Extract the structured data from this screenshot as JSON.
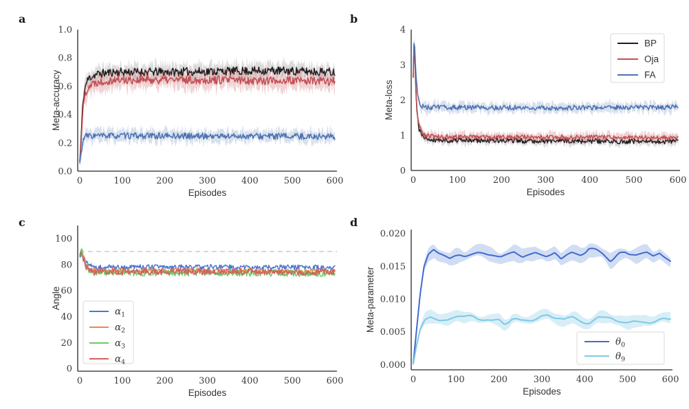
{
  "figure": {
    "background": "#ffffff"
  },
  "chart_data": [
    {
      "panel_label": "a",
      "type": "line",
      "xlabel": "Episodes",
      "ylabel": "Meta-accuracy",
      "xlim": [
        0,
        600
      ],
      "ylim": [
        0,
        1.0
      ],
      "xticks": [
        0,
        100,
        200,
        300,
        400,
        500,
        600
      ],
      "xtick_labels": [
        "0",
        "100",
        "200",
        "300",
        "400",
        "500",
        "600"
      ],
      "yticks": [
        0.0,
        0.2,
        0.4,
        0.6,
        0.8,
        1.0
      ],
      "ytick_labels": [
        "0.0",
        "0.2",
        "0.4",
        "0.6",
        "0.8",
        "1.0"
      ],
      "legend": null,
      "ref_lines": [],
      "series": [
        {
          "id": "bp",
          "name": "BP",
          "color": "#1b1b1b",
          "line_width": 1.5,
          "band_color": "#8a8a8a",
          "band_opacity": 0.3,
          "band": 0.07,
          "noise": 0.03,
          "smooth": 0,
          "seed": 11,
          "samples": 360,
          "keypoints": [
            [
              0,
              0.07
            ],
            [
              3,
              0.22
            ],
            [
              6,
              0.42
            ],
            [
              10,
              0.55
            ],
            [
              15,
              0.62
            ],
            [
              22,
              0.66
            ],
            [
              40,
              0.685
            ],
            [
              80,
              0.7
            ],
            [
              200,
              0.7
            ],
            [
              320,
              0.705
            ],
            [
              450,
              0.71
            ],
            [
              600,
              0.7
            ]
          ]
        },
        {
          "id": "oja",
          "name": "Oja",
          "color": "#c44e52",
          "line_width": 1.5,
          "band_color": "#c44e52",
          "band_opacity": 0.25,
          "band": 0.08,
          "noise": 0.03,
          "smooth": 0,
          "seed": 22,
          "samples": 360,
          "keypoints": [
            [
              0,
              0.07
            ],
            [
              3,
              0.2
            ],
            [
              6,
              0.38
            ],
            [
              10,
              0.5
            ],
            [
              15,
              0.565
            ],
            [
              22,
              0.605
            ],
            [
              40,
              0.63
            ],
            [
              80,
              0.645
            ],
            [
              300,
              0.645
            ],
            [
              600,
              0.635
            ]
          ]
        },
        {
          "id": "fa",
          "name": "FA",
          "color": "#4c72b0",
          "line_width": 1.5,
          "band_color": "#4c72b0",
          "band_opacity": 0.22,
          "band": 0.055,
          "noise": 0.022,
          "smooth": 0,
          "seed": 33,
          "samples": 360,
          "keypoints": [
            [
              0,
              0.055
            ],
            [
              3,
              0.12
            ],
            [
              6,
              0.19
            ],
            [
              10,
              0.235
            ],
            [
              16,
              0.25
            ],
            [
              40,
              0.25
            ],
            [
              300,
              0.248
            ],
            [
              600,
              0.245
            ]
          ]
        }
      ]
    },
    {
      "panel_label": "b",
      "type": "line",
      "xlabel": "Episodes",
      "ylabel": "Meta-loss",
      "xlim": [
        0,
        600
      ],
      "ylim": [
        0,
        4
      ],
      "xticks": [
        0,
        100,
        200,
        300,
        400,
        500,
        600
      ],
      "xtick_labels": [
        "0",
        "100",
        "200",
        "300",
        "400",
        "500",
        "600"
      ],
      "yticks": [
        0,
        1,
        2,
        3,
        4
      ],
      "ytick_labels": [
        "0",
        "1",
        "2",
        "3",
        "4"
      ],
      "legend": {
        "position": "top-right",
        "items": [
          {
            "id": "bp",
            "label": "BP",
            "sub": "",
            "italic": false,
            "color": "#1b1b1b"
          },
          {
            "id": "oja",
            "label": "Oja",
            "sub": "",
            "italic": false,
            "color": "#c44e52"
          },
          {
            "id": "fa",
            "label": "FA",
            "sub": "",
            "italic": false,
            "color": "#4c72b0"
          }
        ]
      },
      "ref_lines": [],
      "series": [
        {
          "id": "bp",
          "name": "BP",
          "color": "#1b1b1b",
          "line_width": 1.5,
          "band_color": "#8a8a8a",
          "band_opacity": 0.3,
          "band": 0.14,
          "noise": 0.07,
          "smooth": 0,
          "seed": 41,
          "samples": 360,
          "keypoints": [
            [
              0,
              2.6
            ],
            [
              2,
              3.75
            ],
            [
              4,
              3.05
            ],
            [
              6,
              2.15
            ],
            [
              9,
              1.55
            ],
            [
              13,
              1.18
            ],
            [
              20,
              1.0
            ],
            [
              30,
              0.9
            ],
            [
              60,
              0.86
            ],
            [
              300,
              0.84
            ],
            [
              600,
              0.82
            ]
          ]
        },
        {
          "id": "oja",
          "name": "Oja",
          "color": "#c44e52",
          "line_width": 1.5,
          "band_color": "#c44e52",
          "band_opacity": 0.25,
          "band": 0.16,
          "noise": 0.06,
          "smooth": 0,
          "seed": 52,
          "samples": 360,
          "keypoints": [
            [
              0,
              2.7
            ],
            [
              2,
              3.8
            ],
            [
              4,
              3.15
            ],
            [
              6,
              2.25
            ],
            [
              9,
              1.65
            ],
            [
              13,
              1.28
            ],
            [
              20,
              1.07
            ],
            [
              30,
              0.99
            ],
            [
              60,
              0.96
            ],
            [
              300,
              0.95
            ],
            [
              600,
              0.93
            ]
          ]
        },
        {
          "id": "fa",
          "name": "FA",
          "color": "#4c72b0",
          "line_width": 1.5,
          "band_color": "#4c72b0",
          "band_opacity": 0.22,
          "band": 0.18,
          "noise": 0.07,
          "smooth": 0,
          "seed": 63,
          "samples": 360,
          "keypoints": [
            [
              0,
              2.9
            ],
            [
              2,
              3.82
            ],
            [
              4,
              3.4
            ],
            [
              6,
              2.75
            ],
            [
              9,
              2.25
            ],
            [
              13,
              1.95
            ],
            [
              20,
              1.83
            ],
            [
              35,
              1.79
            ],
            [
              300,
              1.78
            ],
            [
              600,
              1.8
            ]
          ]
        }
      ]
    },
    {
      "panel_label": "c",
      "type": "line",
      "xlabel": "Episodes",
      "ylabel": "Angle",
      "xlim": [
        0,
        600
      ],
      "ylim": [
        -2,
        110
      ],
      "xticks": [
        0,
        100,
        200,
        300,
        400,
        500,
        600
      ],
      "xtick_labels": [
        "0",
        "100",
        "200",
        "300",
        "400",
        "500",
        "600"
      ],
      "yticks": [
        0,
        20,
        40,
        60,
        80,
        100
      ],
      "ytick_labels": [
        "0",
        "20",
        "40",
        "60",
        "80",
        "100"
      ],
      "legend": {
        "position": "bottom-left",
        "items": [
          {
            "id": "alpha1",
            "label": "α",
            "sub": "1",
            "italic": true,
            "color": "#4878d0"
          },
          {
            "id": "alpha2",
            "label": "α",
            "sub": "2",
            "italic": true,
            "color": "#ee854a"
          },
          {
            "id": "alpha3",
            "label": "α",
            "sub": "3",
            "italic": true,
            "color": "#6acc64"
          },
          {
            "id": "alpha4",
            "label": "α",
            "sub": "4",
            "italic": true,
            "color": "#d65f5f"
          }
        ]
      },
      "ref_lines": [
        {
          "y": 90,
          "color": "#cccccc",
          "dash": "7 5",
          "width": 1.5
        }
      ],
      "series": [
        {
          "id": "alpha1",
          "name": "α1",
          "color": "#4878d0",
          "line_width": 1.5,
          "band_color": "#4878d0",
          "band_opacity": 0,
          "band": 0,
          "noise": 2.0,
          "smooth": 0,
          "seed": 71,
          "samples": 360,
          "keypoints": [
            [
              0,
              85
            ],
            [
              4,
              90
            ],
            [
              8,
              88
            ],
            [
              14,
              82
            ],
            [
              22,
              79
            ],
            [
              35,
              78
            ],
            [
              300,
              78
            ],
            [
              600,
              77.5
            ]
          ]
        },
        {
          "id": "alpha2",
          "name": "α2",
          "color": "#ee854a",
          "line_width": 1.5,
          "band_color": "#ee854a",
          "band_opacity": 0,
          "band": 0,
          "noise": 2.2,
          "smooth": 0,
          "seed": 82,
          "samples": 360,
          "keypoints": [
            [
              0,
              86
            ],
            [
              4,
              91
            ],
            [
              8,
              87
            ],
            [
              14,
              80
            ],
            [
              22,
              76
            ],
            [
              35,
              75.5
            ],
            [
              300,
              75
            ],
            [
              600,
              74.5
            ]
          ]
        },
        {
          "id": "alpha3",
          "name": "α3",
          "color": "#6acc64",
          "line_width": 1.5,
          "band_color": "#6acc64",
          "band_opacity": 0,
          "band": 0,
          "noise": 2.4,
          "smooth": 0,
          "seed": 93,
          "samples": 360,
          "keypoints": [
            [
              0,
              87
            ],
            [
              4,
              92
            ],
            [
              8,
              86
            ],
            [
              14,
              79
            ],
            [
              22,
              74.5
            ],
            [
              35,
              73.5
            ],
            [
              300,
              73.5
            ],
            [
              600,
              73
            ]
          ]
        },
        {
          "id": "alpha4",
          "name": "α4",
          "color": "#d65f5f",
          "line_width": 1.5,
          "band_color": "#d65f5f",
          "band_opacity": 0,
          "band": 0,
          "noise": 2.4,
          "smooth": 0,
          "seed": 104,
          "samples": 360,
          "keypoints": [
            [
              0,
              85
            ],
            [
              4,
              89
            ],
            [
              8,
              85
            ],
            [
              14,
              79
            ],
            [
              22,
              75
            ],
            [
              35,
              74.5
            ],
            [
              300,
              74.5
            ],
            [
              600,
              74
            ]
          ]
        }
      ]
    },
    {
      "panel_label": "d",
      "type": "line",
      "xlabel": "Episodes",
      "ylabel": "Meta-parameter",
      "xlim": [
        0,
        600
      ],
      "ylim": [
        -0.0008,
        0.0206
      ],
      "xticks": [
        0,
        100,
        200,
        300,
        400,
        500,
        600
      ],
      "xtick_labels": [
        "0",
        "100",
        "200",
        "300",
        "400",
        "500",
        "600"
      ],
      "yticks": [
        0.0,
        0.005,
        0.01,
        0.015,
        0.02
      ],
      "ytick_labels": [
        "0.000",
        "0.005",
        "0.010",
        "0.015",
        "0.020"
      ],
      "legend": {
        "position": "bottom-right",
        "items": [
          {
            "id": "theta0",
            "label": "θ",
            "sub": "0",
            "italic": true,
            "color": "#4169d0"
          },
          {
            "id": "theta9",
            "label": "θ",
            "sub": "9",
            "italic": true,
            "color": "#7ec8e3"
          }
        ]
      },
      "ref_lines": [],
      "series": [
        {
          "id": "theta0",
          "name": "θ0",
          "color": "#4169d0",
          "line_width": 2,
          "band_color": "#4878d0",
          "band_opacity": 0.25,
          "band": 0.0013,
          "noise": 0.00045,
          "smooth": 8,
          "seed": 115,
          "samples": 240,
          "keypoints": [
            [
              0,
              0.0002
            ],
            [
              8,
              0.0055
            ],
            [
              16,
              0.0105
            ],
            [
              25,
              0.0145
            ],
            [
              35,
              0.0164
            ],
            [
              48,
              0.0174
            ],
            [
              65,
              0.017
            ],
            [
              85,
              0.0161
            ],
            [
              110,
              0.0168
            ],
            [
              150,
              0.017
            ],
            [
              175,
              0.0165
            ],
            [
              205,
              0.0164
            ],
            [
              235,
              0.0171
            ],
            [
              255,
              0.0162
            ],
            [
              285,
              0.017
            ],
            [
              310,
              0.0165
            ],
            [
              330,
              0.017
            ],
            [
              345,
              0.0158
            ],
            [
              370,
              0.0169
            ],
            [
              390,
              0.0168
            ],
            [
              410,
              0.0178
            ],
            [
              430,
              0.0172
            ],
            [
              460,
              0.0159
            ],
            [
              480,
              0.0168
            ],
            [
              495,
              0.0172
            ],
            [
              520,
              0.0167
            ],
            [
              545,
              0.0171
            ],
            [
              560,
              0.0166
            ],
            [
              575,
              0.0172
            ],
            [
              600,
              0.016
            ]
          ]
        },
        {
          "id": "theta9",
          "name": "θ9",
          "color": "#7ec8e3",
          "line_width": 2,
          "band_color": "#7ec8e3",
          "band_opacity": 0.3,
          "band": 0.0011,
          "noise": 0.0004,
          "smooth": 8,
          "seed": 126,
          "samples": 240,
          "keypoints": [
            [
              0,
              0.0001
            ],
            [
              8,
              0.003
            ],
            [
              16,
              0.0052
            ],
            [
              28,
              0.0068
            ],
            [
              40,
              0.0074
            ],
            [
              60,
              0.0071
            ],
            [
              80,
              0.0069
            ],
            [
              105,
              0.0072
            ],
            [
              130,
              0.0073
            ],
            [
              150,
              0.0068
            ],
            [
              175,
              0.007
            ],
            [
              200,
              0.0068
            ],
            [
              212,
              0.0063
            ],
            [
              230,
              0.007
            ],
            [
              250,
              0.0066
            ],
            [
              272,
              0.0067
            ],
            [
              292,
              0.0071
            ],
            [
              315,
              0.0076
            ],
            [
              332,
              0.007
            ],
            [
              352,
              0.0067
            ],
            [
              372,
              0.0072
            ],
            [
              392,
              0.0067
            ],
            [
              412,
              0.0064
            ],
            [
              432,
              0.0071
            ],
            [
              452,
              0.0069
            ],
            [
              472,
              0.0066
            ],
            [
              492,
              0.0067
            ],
            [
              512,
              0.0069
            ],
            [
              532,
              0.0066
            ],
            [
              552,
              0.0064
            ],
            [
              572,
              0.0068
            ],
            [
              600,
              0.0071
            ]
          ]
        }
      ]
    }
  ]
}
